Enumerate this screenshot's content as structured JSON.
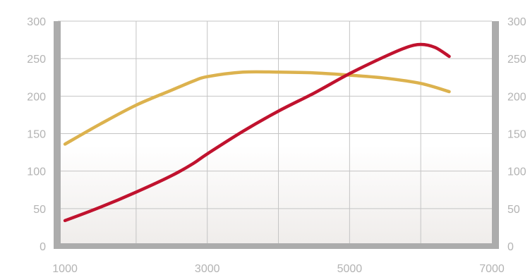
{
  "chart_data": {
    "type": "line",
    "title": "",
    "xlabel": "",
    "ylabel": "",
    "xlim": [
      900,
      7000
    ],
    "ylim": [
      0,
      300
    ],
    "x_ticks": [
      "1000",
      "3000",
      "5000",
      "7000"
    ],
    "x_grid": [
      2000,
      3000,
      4000,
      5000,
      6000
    ],
    "y_ticks_left": [
      "0",
      "50",
      "100",
      "150",
      "200",
      "250",
      "300"
    ],
    "y_ticks_right": [
      "0",
      "50",
      "100",
      "150",
      "200",
      "250",
      "300"
    ],
    "grid": true,
    "legend": "none",
    "series": [
      {
        "color": "#dcb24e",
        "points": [
          [
            1000,
            136
          ],
          [
            1500,
            163
          ],
          [
            2000,
            188
          ],
          [
            2500,
            208
          ],
          [
            2800,
            220
          ],
          [
            3000,
            226
          ],
          [
            3500,
            232
          ],
          [
            4000,
            232
          ],
          [
            4500,
            231
          ],
          [
            5000,
            228
          ],
          [
            5500,
            224
          ],
          [
            6000,
            217
          ],
          [
            6400,
            206
          ]
        ]
      },
      {
        "color": "#c0122e",
        "points": [
          [
            1000,
            34
          ],
          [
            1500,
            52
          ],
          [
            2000,
            72
          ],
          [
            2500,
            94
          ],
          [
            2800,
            110
          ],
          [
            3000,
            123
          ],
          [
            3500,
            153
          ],
          [
            4000,
            180
          ],
          [
            4500,
            204
          ],
          [
            5000,
            230
          ],
          [
            5500,
            253
          ],
          [
            5800,
            265
          ],
          [
            6000,
            269
          ],
          [
            6200,
            265
          ],
          [
            6400,
            253
          ]
        ]
      }
    ],
    "colors": {
      "frame": "#acacac",
      "grid": "#c4c4c4",
      "tick_text": "#b3b3b3",
      "fill_bottom": "#efecea"
    }
  }
}
